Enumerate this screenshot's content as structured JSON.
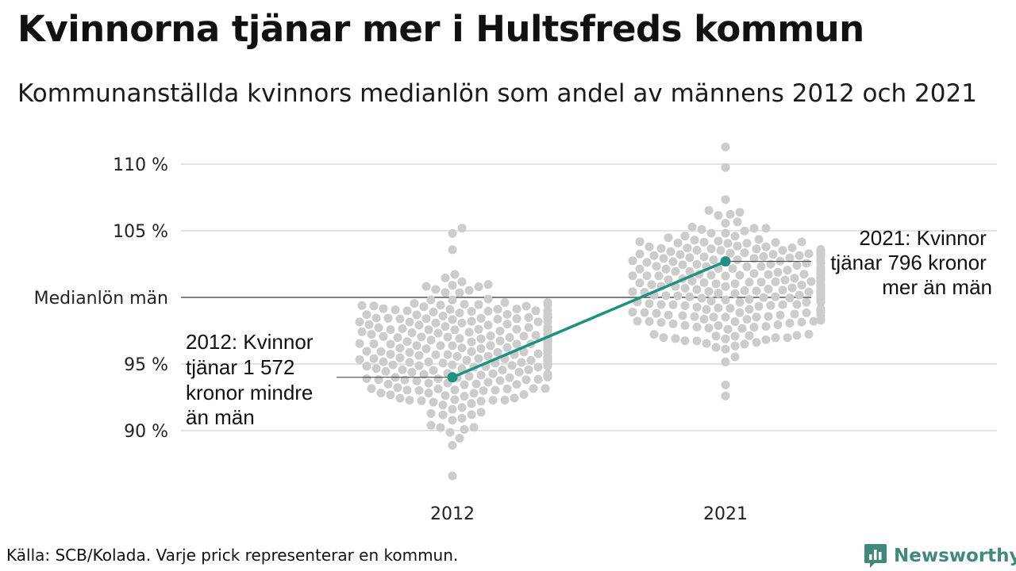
{
  "title": "Kvinnorna tjänar mer i Hultsfreds kommun",
  "subtitle": "Kommunanställda kvinnors medianlön som andel av männens 2012 och 2021",
  "source": "Källa: SCB/Kolada. Varje prick representerar en kommun.",
  "brand": {
    "name": "Newsworthy",
    "icon": "newsworthy-logo-icon"
  },
  "colors": {
    "dots": "#cccccc",
    "highlight": "#1f9181",
    "grid": "#e3e3e3",
    "reference": "#333333",
    "brand": "#3f8a7d"
  },
  "chart_data": {
    "type": "scatter",
    "subtype": "beeswarm",
    "categories": [
      "2012",
      "2021"
    ],
    "ylim": [
      86,
      111.5
    ],
    "yticks": [
      {
        "value": 90,
        "label": "90 %"
      },
      {
        "value": 95,
        "label": "95 %"
      },
      {
        "value": 100,
        "label": "Medianlön män"
      },
      {
        "value": 105,
        "label": "105 %"
      },
      {
        "value": 110,
        "label": "110 %"
      }
    ],
    "reference_line": {
      "value": 100,
      "label": "Medianlön män"
    },
    "grid": true,
    "distributions": [
      {
        "category": "2012",
        "n": 290,
        "center": 96.2,
        "spread": 2.8,
        "min": 86.6,
        "max": 105.2
      },
      {
        "category": "2021",
        "n": 290,
        "center": 100.8,
        "spread": 2.4,
        "min": 92.6,
        "max": 111.3
      }
    ],
    "highlight": {
      "name": "Hultsfreds kommun",
      "points": [
        {
          "x": "2012",
          "y": 94.0
        },
        {
          "x": "2021",
          "y": 102.7
        }
      ]
    },
    "annotations": [
      {
        "x": "2012",
        "lines": [
          "2012: Kvinnor",
          "tjänar 1 572",
          "kronor mindre",
          "än män"
        ]
      },
      {
        "x": "2021",
        "lines": [
          "2021: Kvinnor",
          "tjänar 796 kronor",
          "mer än män"
        ]
      }
    ]
  }
}
